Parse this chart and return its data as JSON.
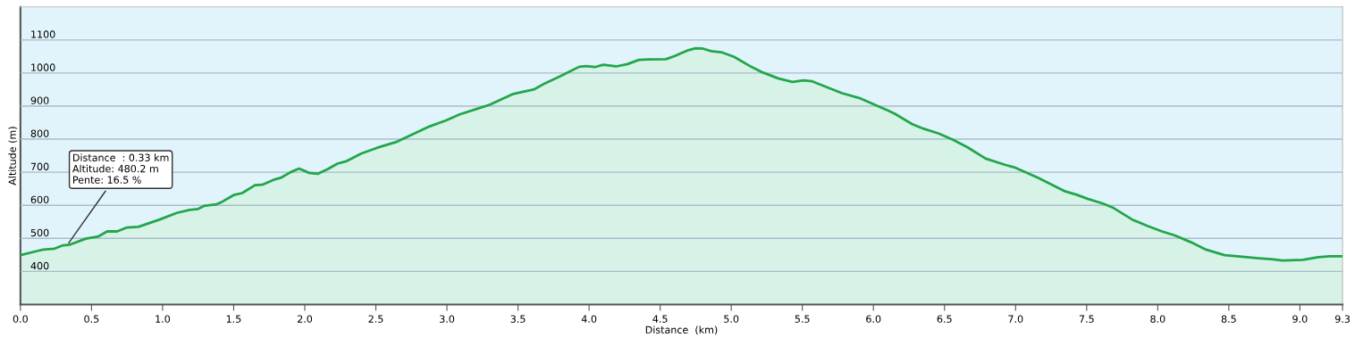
{
  "chart_data": {
    "type": "area",
    "xlabel": "Distance  (km)",
    "ylabel": "Altitude (m)",
    "x": [
      0,
      0.13,
      0.16,
      0.24,
      0.3,
      0.34,
      0.46,
      0.55,
      0.61,
      0.68,
      0.75,
      0.83,
      0.98,
      1.1,
      1.19,
      1.25,
      1.29,
      1.38,
      1.42,
      1.5,
      1.56,
      1.65,
      1.7,
      1.78,
      1.83,
      1.9,
      1.96,
      2.03,
      2.09,
      2.16,
      2.23,
      2.29,
      2.4,
      2.51,
      2.64,
      2.76,
      2.88,
      2.99,
      3.09,
      3.22,
      3.3,
      3.46,
      3.53,
      3.61,
      3.69,
      3.8,
      3.93,
      3.98,
      4.04,
      4.1,
      4.19,
      4.27,
      4.35,
      4.42,
      4.54,
      4.6,
      4.69,
      4.75,
      4.8,
      4.86,
      4.93,
      5.02,
      5.14,
      5.22,
      5.33,
      5.43,
      5.51,
      5.57,
      5.68,
      5.78,
      5.91,
      6.01,
      6.1,
      6.15,
      6.27,
      6.35,
      6.46,
      6.56,
      6.66,
      6.79,
      6.93,
      6.99,
      7.16,
      7.35,
      7.43,
      7.51,
      7.61,
      7.68,
      7.82,
      7.93,
      8.03,
      8.12,
      8.23,
      8.34,
      8.47,
      8.61,
      8.71,
      8.8,
      8.88,
      9.02,
      9.13,
      9.21,
      9.3
    ],
    "series": [
      {
        "color": "#22a64b",
        "values": [
          449,
          463,
          466,
          469,
          479,
          480,
          499,
          506,
          521,
          521,
          533,
          535,
          557,
          577,
          586,
          589,
          598,
          603,
          611,
          631,
          637,
          661,
          662,
          677,
          683,
          700,
          711,
          698,
          695,
          709,
          726,
          733,
          757,
          774,
          791,
          815,
          839,
          856,
          875,
          893,
          904,
          936,
          943,
          950,
          969,
          991,
          1019,
          1021,
          1018,
          1025,
          1020,
          1027,
          1040,
          1041,
          1042,
          1051,
          1068,
          1075,
          1074,
          1066,
          1063,
          1049,
          1019,
          1002,
          984,
          973,
          978,
          975,
          956,
          939,
          923,
          904,
          887,
          877,
          846,
          832,
          817,
          798,
          776,
          741,
          722,
          715,
          683,
          642,
          632,
          619,
          606,
          594,
          557,
          537,
          521,
          509,
          489,
          466,
          449,
          444,
          440,
          437,
          433,
          435,
          443,
          446,
          446
        ]
      }
    ],
    "xlim": [
      0,
      9.3
    ],
    "ylim": [
      300,
      1200
    ],
    "xticks": [
      {
        "value": 0,
        "label": "0.0"
      },
      {
        "value": 0.5,
        "label": "0.5"
      },
      {
        "value": 1,
        "label": "1.0"
      },
      {
        "value": 1.5,
        "label": "1.5"
      },
      {
        "value": 2,
        "label": "2.0"
      },
      {
        "value": 2.5,
        "label": "2.5"
      },
      {
        "value": 3,
        "label": "3.0"
      },
      {
        "value": 3.5,
        "label": "3.5"
      },
      {
        "value": 4,
        "label": "4.0"
      },
      {
        "value": 4.5,
        "label": "4.5"
      },
      {
        "value": 5,
        "label": "5.0"
      },
      {
        "value": 5.5,
        "label": "5.5"
      },
      {
        "value": 6,
        "label": "6.0"
      },
      {
        "value": 6.5,
        "label": "6.5"
      },
      {
        "value": 7,
        "label": "7.0"
      },
      {
        "value": 7.5,
        "label": "7.5"
      },
      {
        "value": 8,
        "label": "8.0"
      },
      {
        "value": 8.5,
        "label": "8.5"
      },
      {
        "value": 9,
        "label": "9.0"
      },
      {
        "value": 9.3,
        "label": "9.3"
      }
    ],
    "yticks": [
      400,
      500,
      600,
      700,
      800,
      900,
      1000,
      1100
    ],
    "grid": "y",
    "annotations": [
      {
        "text": "Distance  : 0.33 km\nAltitude: 480.2 m\nPente: 16.5 %",
        "x": 0.33,
        "y": 480.2
      }
    ]
  }
}
